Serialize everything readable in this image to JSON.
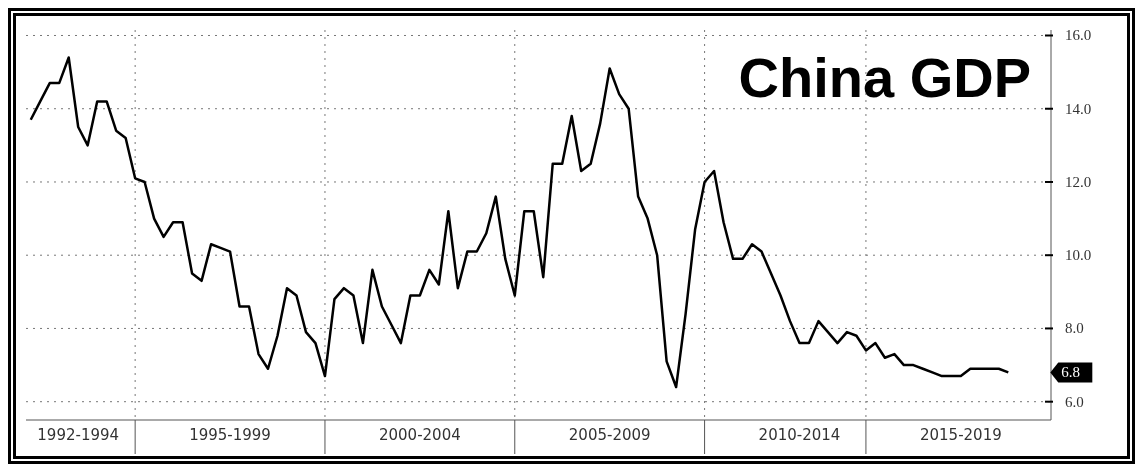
{
  "chart_data": {
    "type": "line",
    "title": "China GDP",
    "categories": [
      null,
      null,
      null,
      null,
      null,
      "1992-1994",
      null,
      null,
      null,
      null,
      null,
      null,
      null,
      null,
      null,
      null,
      null,
      null,
      null,
      null,
      null,
      "1995-1999",
      null,
      null,
      null,
      null,
      null,
      null,
      null,
      null,
      null,
      null,
      null,
      null,
      null,
      null,
      null,
      null,
      null,
      null,
      null,
      "2000-2004",
      null,
      null,
      null,
      null,
      null,
      null,
      null,
      null,
      null,
      null,
      null,
      null,
      null,
      null,
      null,
      null,
      null,
      null,
      null,
      "2005-2009",
      null,
      null,
      null,
      null,
      null,
      null,
      null,
      null,
      null,
      null,
      null,
      null,
      null,
      null,
      null,
      null,
      null,
      null,
      null,
      "2010-2014",
      null,
      null,
      null,
      null,
      null,
      null,
      null,
      null,
      null,
      null,
      null,
      null,
      null,
      null,
      null,
      null,
      "2015-2019",
      null,
      null,
      null,
      null,
      null
    ],
    "series": [
      {
        "color": "#000000",
        "values": [
          13.7,
          14.2,
          14.7,
          14.7,
          15.4,
          13.5,
          13.0,
          14.2,
          14.2,
          13.4,
          13.2,
          12.1,
          12.0,
          11.0,
          10.5,
          10.9,
          10.9,
          9.5,
          9.3,
          10.3,
          10.2,
          10.1,
          8.6,
          8.6,
          7.3,
          6.9,
          7.8,
          9.1,
          8.9,
          7.9,
          7.6,
          6.7,
          8.8,
          9.1,
          8.9,
          7.6,
          9.6,
          8.6,
          8.1,
          7.6,
          8.9,
          8.9,
          9.6,
          9.2,
          11.2,
          9.1,
          10.1,
          10.1,
          10.6,
          11.6,
          9.9,
          8.9,
          11.2,
          11.2,
          9.4,
          12.5,
          12.5,
          13.8,
          12.3,
          12.5,
          13.6,
          15.1,
          14.4,
          14.0,
          11.6,
          11.0,
          10.0,
          7.1,
          6.4,
          8.4,
          10.7,
          12.0,
          12.3,
          10.9,
          9.9,
          9.9,
          10.3,
          10.1,
          9.5,
          8.9,
          8.2,
          7.6,
          7.6,
          8.2,
          7.9,
          7.6,
          7.9,
          7.8,
          7.4,
          7.6,
          7.2,
          7.3,
          7.0,
          7.0,
          6.9,
          6.8,
          6.7,
          6.7,
          6.7,
          6.9,
          6.9,
          6.9,
          6.9,
          6.8
        ]
      }
    ],
    "ylim": [
      5.5,
      16.15
    ],
    "yticks": [
      {
        "value": 6,
        "label": "6.0"
      },
      {
        "value": 8,
        "label": "8.0"
      },
      {
        "value": 10,
        "label": "10.0"
      },
      {
        "value": 12,
        "label": "12.0"
      },
      {
        "value": 14,
        "label": "14.0"
      },
      {
        "value": 16,
        "label": "16.0"
      }
    ],
    "annotations": [
      "6.8"
    ],
    "grid": true,
    "line_style": "solid",
    "marker": "none",
    "legend": false
  }
}
